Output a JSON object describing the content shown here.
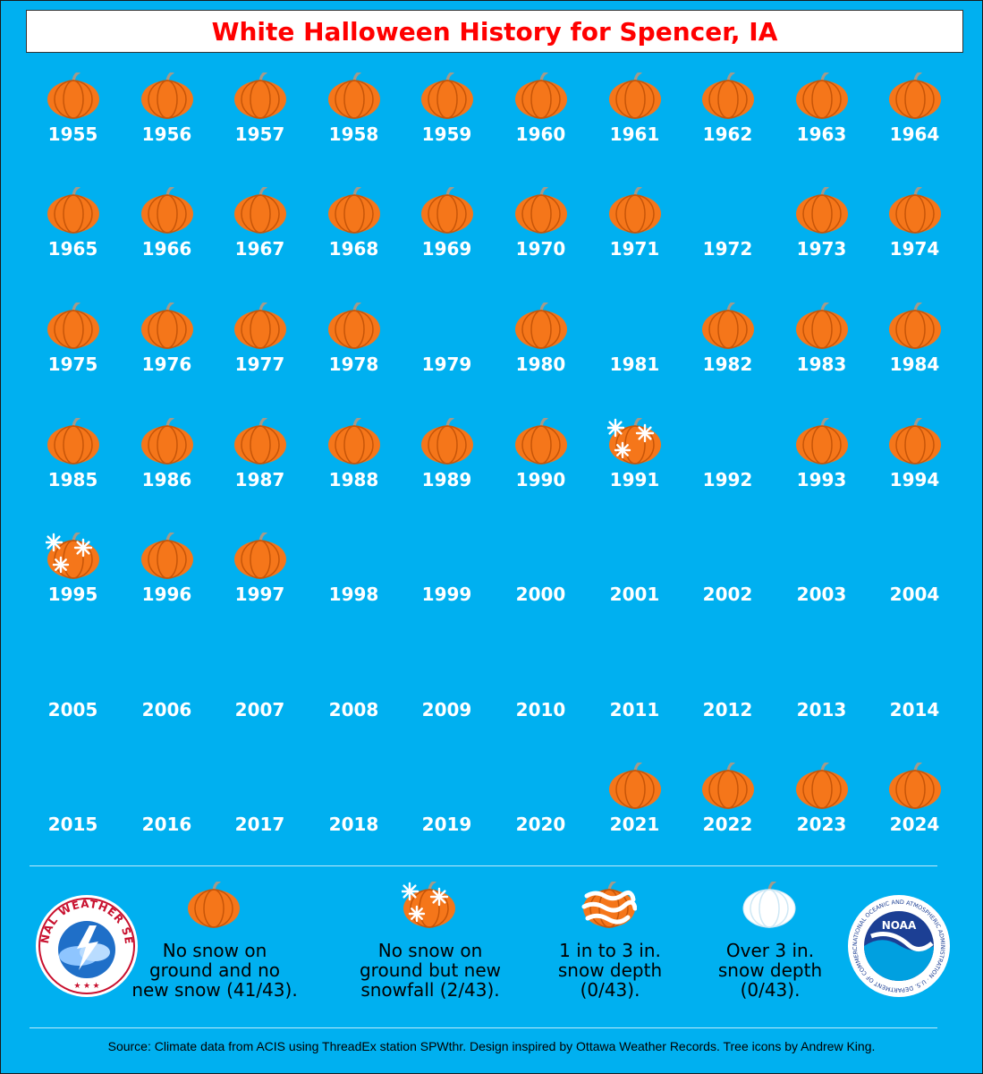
{
  "title": "White Halloween History for Spencer, IA",
  "colors": {
    "background": "#00b0f0",
    "title": "#ff0000",
    "pumpkin": "#f5761a",
    "pumpkin_rib": "#c75508",
    "stem": "#a39a8a",
    "year_text": "#ffffff"
  },
  "icon_names": {
    "no_snow": "pumpkin-icon",
    "new_snow": "snowflake-pumpkin-icon",
    "depth_1_3": "snow-streaked-pumpkin-icon",
    "depth_over_3": "white-pumpkin-icon"
  },
  "rows": [
    [
      {
        "year": "1955",
        "icon": "no_snow"
      },
      {
        "year": "1956",
        "icon": "no_snow"
      },
      {
        "year": "1957",
        "icon": "no_snow"
      },
      {
        "year": "1958",
        "icon": "no_snow"
      },
      {
        "year": "1959",
        "icon": "no_snow"
      },
      {
        "year": "1960",
        "icon": "no_snow"
      },
      {
        "year": "1961",
        "icon": "no_snow"
      },
      {
        "year": "1962",
        "icon": "no_snow"
      },
      {
        "year": "1963",
        "icon": "no_snow"
      },
      {
        "year": "1964",
        "icon": "no_snow"
      }
    ],
    [
      {
        "year": "1965",
        "icon": "no_snow"
      },
      {
        "year": "1966",
        "icon": "no_snow"
      },
      {
        "year": "1967",
        "icon": "no_snow"
      },
      {
        "year": "1968",
        "icon": "no_snow"
      },
      {
        "year": "1969",
        "icon": "no_snow"
      },
      {
        "year": "1970",
        "icon": "no_snow"
      },
      {
        "year": "1971",
        "icon": "no_snow"
      },
      {
        "year": "1972",
        "icon": "none"
      },
      {
        "year": "1973",
        "icon": "no_snow"
      },
      {
        "year": "1974",
        "icon": "no_snow"
      }
    ],
    [
      {
        "year": "1975",
        "icon": "no_snow"
      },
      {
        "year": "1976",
        "icon": "no_snow"
      },
      {
        "year": "1977",
        "icon": "no_snow"
      },
      {
        "year": "1978",
        "icon": "no_snow"
      },
      {
        "year": "1979",
        "icon": "none"
      },
      {
        "year": "1980",
        "icon": "no_snow"
      },
      {
        "year": "1981",
        "icon": "none"
      },
      {
        "year": "1982",
        "icon": "no_snow"
      },
      {
        "year": "1983",
        "icon": "no_snow"
      },
      {
        "year": "1984",
        "icon": "no_snow"
      }
    ],
    [
      {
        "year": "1985",
        "icon": "no_snow"
      },
      {
        "year": "1986",
        "icon": "no_snow"
      },
      {
        "year": "1987",
        "icon": "no_snow"
      },
      {
        "year": "1988",
        "icon": "no_snow"
      },
      {
        "year": "1989",
        "icon": "no_snow"
      },
      {
        "year": "1990",
        "icon": "no_snow"
      },
      {
        "year": "1991",
        "icon": "new_snow"
      },
      {
        "year": "1992",
        "icon": "none"
      },
      {
        "year": "1993",
        "icon": "no_snow"
      },
      {
        "year": "1994",
        "icon": "no_snow"
      }
    ],
    [
      {
        "year": "1995",
        "icon": "new_snow"
      },
      {
        "year": "1996",
        "icon": "no_snow"
      },
      {
        "year": "1997",
        "icon": "no_snow"
      },
      {
        "year": "1998",
        "icon": "none"
      },
      {
        "year": "1999",
        "icon": "none"
      },
      {
        "year": "2000",
        "icon": "none"
      },
      {
        "year": "2001",
        "icon": "none"
      },
      {
        "year": "2002",
        "icon": "none"
      },
      {
        "year": "2003",
        "icon": "none"
      },
      {
        "year": "2004",
        "icon": "none"
      }
    ],
    [
      {
        "year": "2005",
        "icon": "none"
      },
      {
        "year": "2006",
        "icon": "none"
      },
      {
        "year": "2007",
        "icon": "none"
      },
      {
        "year": "2008",
        "icon": "none"
      },
      {
        "year": "2009",
        "icon": "none"
      },
      {
        "year": "2010",
        "icon": "none"
      },
      {
        "year": "2011",
        "icon": "none"
      },
      {
        "year": "2012",
        "icon": "none"
      },
      {
        "year": "2013",
        "icon": "none"
      },
      {
        "year": "2014",
        "icon": "none"
      }
    ],
    [
      {
        "year": "2015",
        "icon": "none"
      },
      {
        "year": "2016",
        "icon": "none"
      },
      {
        "year": "2017",
        "icon": "none"
      },
      {
        "year": "2018",
        "icon": "none"
      },
      {
        "year": "2019",
        "icon": "none"
      },
      {
        "year": "2020",
        "icon": "none"
      },
      {
        "year": "2021",
        "icon": "no_snow"
      },
      {
        "year": "2022",
        "icon": "no_snow"
      },
      {
        "year": "2023",
        "icon": "no_snow"
      },
      {
        "year": "2024",
        "icon": "no_snow"
      }
    ]
  ],
  "legend": [
    {
      "icon": "no_snow",
      "text": "No snow on\nground and no\nnew snow (41/43)."
    },
    {
      "icon": "new_snow",
      "text": "No snow on\nground but new\nsnowfall (2/43)."
    },
    {
      "icon": "depth_1_3",
      "text": "1 in to 3 in.\nsnow depth\n(0/43)."
    },
    {
      "icon": "depth_over_3",
      "text": "Over 3 in.\nsnow depth\n(0/43)."
    }
  ],
  "logos": {
    "nws_text": "NATIONAL WEATHER SERVICE",
    "noaa_center": "NOAA",
    "noaa_ring": "NATIONAL OCEANIC AND ATMOSPHERIC ADMINISTRATION · U.S. DEPARTMENT OF COMMERCE"
  },
  "source": "Source: Climate data from ACIS using ThreadEx station SPWthr. Design inspired by Ottawa Weather Records. Tree icons by Andrew King."
}
